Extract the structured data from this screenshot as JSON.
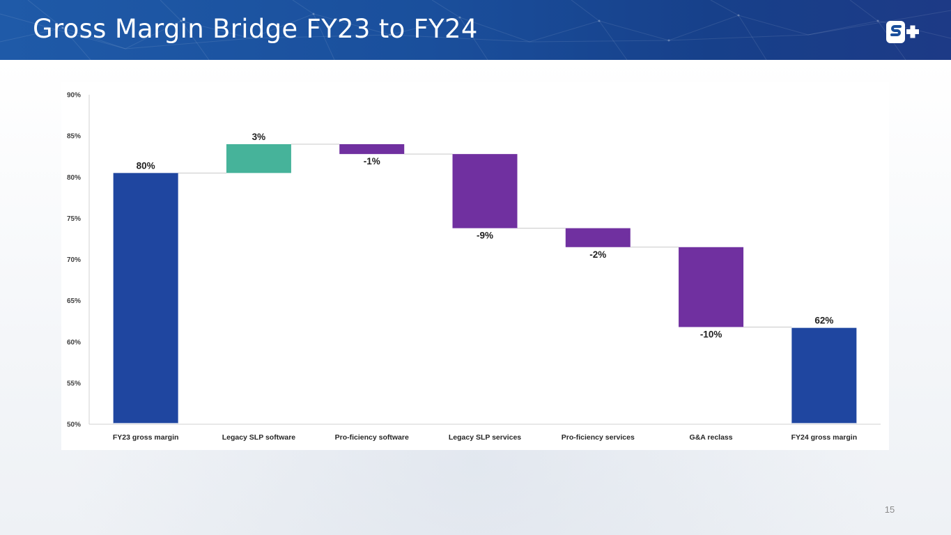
{
  "slide": {
    "title": "Gross Margin Bridge FY23 to FY24",
    "page_number": "15",
    "logo_text": "S+"
  },
  "colors": {
    "header": "#1a4f9c",
    "total": "#1f46a0",
    "increase": "#46b39a",
    "decrease": "#7030a0",
    "connector": "#c8c8c8",
    "axis": "#d0d0d0"
  },
  "chart_data": {
    "type": "waterfall",
    "title": "",
    "xlabel": "",
    "ylabel": "",
    "ylim": [
      50,
      90
    ],
    "y_ticks": [
      50,
      55,
      60,
      65,
      70,
      75,
      80,
      85,
      90
    ],
    "y_tick_labels": [
      "50%",
      "55%",
      "60%",
      "65%",
      "70%",
      "75%",
      "80%",
      "85%",
      "90%"
    ],
    "grid": false,
    "categories": [
      "FY23 gross margin",
      "Legacy SLP software",
      "Pro-ficiency software",
      "Legacy SLP services",
      "Pro-ficiency services",
      "G&A reclass",
      "FY24 gross margin"
    ],
    "steps": [
      {
        "label": "FY23 gross margin",
        "kind": "total",
        "start": 50,
        "end": 80.5,
        "value_label": "80%"
      },
      {
        "label": "Legacy SLP software",
        "kind": "increase",
        "start": 80.5,
        "end": 84.0,
        "value_label": "3%"
      },
      {
        "label": "Pro-ficiency software",
        "kind": "decrease",
        "start": 84.0,
        "end": 82.8,
        "value_label": "-1%"
      },
      {
        "label": "Legacy SLP services",
        "kind": "decrease",
        "start": 82.8,
        "end": 73.8,
        "value_label": "-9%"
      },
      {
        "label": "Pro-ficiency services",
        "kind": "decrease",
        "start": 73.8,
        "end": 71.5,
        "value_label": "-2%"
      },
      {
        "label": "G&A reclass",
        "kind": "decrease",
        "start": 71.5,
        "end": 61.8,
        "value_label": "-10%"
      },
      {
        "label": "FY24 gross margin",
        "kind": "total",
        "start": 50,
        "end": 61.7,
        "value_label": "62%"
      }
    ]
  }
}
